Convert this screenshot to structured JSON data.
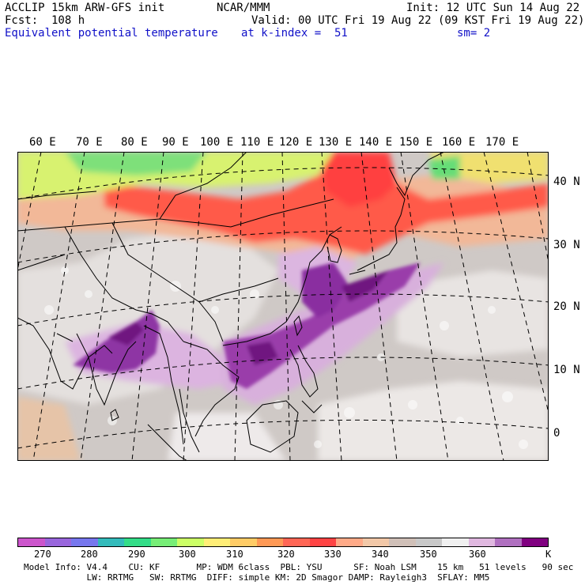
{
  "header": {
    "line1_left": "ACCLIP 15km ARW-GFS init",
    "line1_center": "NCAR/MMM",
    "line1_right": "Init: 12 UTC Sun 14 Aug 22",
    "line2_left": "Fcst:  108 h",
    "line2_right": "Valid: 00 UTC Fri 19 Aug 22 (09 KST Fri 19 Aug 22)",
    "field_name": "Equivalent potential temperature",
    "level": "at k-index =  51",
    "smoothing": "sm= 2"
  },
  "map": {
    "lon_labels": [
      "60 E",
      "70 E",
      "80 E",
      "90 E",
      "100 E",
      "110 E",
      "120 E",
      "130 E",
      "140 E",
      "150 E",
      "160 E",
      "170 E"
    ],
    "lat_labels": [
      "40 N",
      "30 N",
      "20 N",
      "10 N",
      "0"
    ]
  },
  "legend": {
    "unit": "K",
    "ticks": [
      "270",
      "280",
      "290",
      "300",
      "310",
      "320",
      "330",
      "340",
      "350",
      "360"
    ],
    "colors": [
      "#cc55cc",
      "#9966dd",
      "#7777ee",
      "#33bbbb",
      "#33dd88",
      "#77ee77",
      "#ccff66",
      "#ffee77",
      "#ffcc66",
      "#ff9955",
      "#ff6655",
      "#ff4444",
      "#ffaa88",
      "#f2c8a8",
      "#d0c0b8",
      "#c8c8c8",
      "#f0f0f0",
      "#e0b8e0",
      "#b070c0",
      "#800080"
    ]
  },
  "footer": {
    "line1": "Model Info: V4.4    CU: KF       MP: WDM 6class  PBL: YSU      SF: Noah LSM    15 km   51 levels   90 sec",
    "line2": "            LW: RRTMG   SW: RRTMG  DIFF: simple KM: 2D Smagor DAMP: Rayleigh3  SFLAY: MM5"
  }
}
